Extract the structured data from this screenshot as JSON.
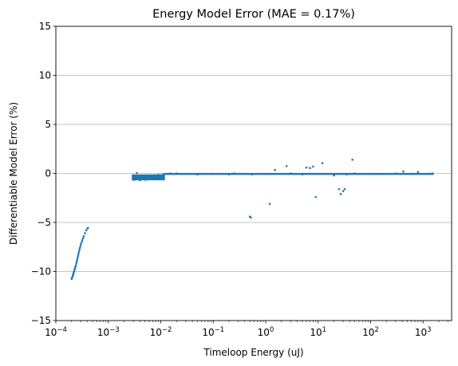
{
  "chart_data": {
    "type": "scatter",
    "title": "Energy Model Error (MAE = 0.17%)",
    "xlabel": "Timeloop Energy (uJ)",
    "ylabel": "Differentiable Model Error (%)",
    "x_scale": "log",
    "xlim": [
      0.0001,
      3500
    ],
    "ylim": [
      -15,
      15
    ],
    "x_ticks": [
      {
        "value": 0.0001,
        "base": "10",
        "exp": "−4"
      },
      {
        "value": 0.001,
        "base": "10",
        "exp": "−3"
      },
      {
        "value": 0.01,
        "base": "10",
        "exp": "−2"
      },
      {
        "value": 0.1,
        "base": "10",
        "exp": "−1"
      },
      {
        "value": 1,
        "base": "10",
        "exp": "0"
      },
      {
        "value": 10,
        "base": "10",
        "exp": "1"
      },
      {
        "value": 100,
        "base": "10",
        "exp": "2"
      },
      {
        "value": 1000,
        "base": "10",
        "exp": "3"
      }
    ],
    "y_ticks": [
      {
        "value": -15,
        "label": "−15"
      },
      {
        "value": -10,
        "label": "−10"
      },
      {
        "value": -5,
        "label": "−5"
      },
      {
        "value": 0,
        "label": "0"
      },
      {
        "value": 5,
        "label": "5"
      },
      {
        "value": 10,
        "label": "10"
      },
      {
        "value": 15,
        "label": "15"
      }
    ],
    "grid": "y-major",
    "point_color": "#1f77b4",
    "series": [
      {
        "points": [
          [
            0.0002,
            -10.75
          ],
          [
            0.000205,
            -10.6
          ],
          [
            0.00021,
            -10.45
          ],
          [
            0.000213,
            -10.3
          ],
          [
            0.000218,
            -10.15
          ],
          [
            0.000222,
            -10.0
          ],
          [
            0.000226,
            -9.85
          ],
          [
            0.00023,
            -9.7
          ],
          [
            0.000235,
            -9.55
          ],
          [
            0.00024,
            -9.4
          ],
          [
            0.000245,
            -9.2
          ],
          [
            0.00025,
            -9.0
          ],
          [
            0.000255,
            -8.8
          ],
          [
            0.00026,
            -8.6
          ],
          [
            0.000265,
            -8.4
          ],
          [
            0.00027,
            -8.2
          ],
          [
            0.000275,
            -8.0
          ],
          [
            0.00028,
            -7.8
          ],
          [
            0.000287,
            -7.6
          ],
          [
            0.000295,
            -7.4
          ],
          [
            0.0003,
            -7.2
          ],
          [
            0.00031,
            -7.0
          ],
          [
            0.00032,
            -6.8
          ],
          [
            0.00033,
            -6.6
          ],
          [
            0.00034,
            -6.4
          ],
          [
            0.00036,
            -6.1
          ],
          [
            0.00038,
            -5.8
          ],
          [
            0.0004,
            -5.6
          ],
          [
            0.00041,
            -5.55
          ],
          [
            0.003,
            -0.45
          ],
          [
            0.0031,
            -0.65
          ],
          [
            0.0032,
            -0.55
          ],
          [
            0.0033,
            -0.4
          ],
          [
            0.0034,
            -0.6
          ],
          [
            0.0035,
            0.05
          ],
          [
            0.0036,
            -0.5
          ],
          [
            0.0038,
            -0.55
          ],
          [
            0.004,
            -0.7
          ],
          [
            0.0042,
            -0.45
          ],
          [
            0.0045,
            -0.6
          ],
          [
            0.0048,
            -0.35
          ],
          [
            0.005,
            -0.5
          ],
          [
            0.0052,
            -0.65
          ],
          [
            0.0055,
            -0.3
          ],
          [
            0.006,
            -0.4
          ],
          [
            0.0065,
            -0.25
          ],
          [
            0.007,
            -0.35
          ],
          [
            0.0075,
            -0.2
          ],
          [
            0.008,
            -0.3
          ],
          [
            0.009,
            -0.15
          ],
          [
            0.01,
            -0.2
          ],
          [
            0.011,
            -0.1
          ],
          [
            0.012,
            -0.05
          ],
          [
            0.015,
            0.0
          ],
          [
            0.02,
            0.0
          ],
          [
            0.05,
            -0.1
          ],
          [
            0.1,
            -0.05
          ],
          [
            0.2,
            -0.1
          ],
          [
            0.25,
            0.0
          ],
          [
            0.5,
            -4.4
          ],
          [
            0.52,
            -4.5
          ],
          [
            0.55,
            -0.1
          ],
          [
            1.0,
            -0.05
          ],
          [
            1.2,
            -3.1
          ],
          [
            1.5,
            0.35
          ],
          [
            2.5,
            0.75
          ],
          [
            3.0,
            0.0
          ],
          [
            5.0,
            -0.1
          ],
          [
            6.0,
            0.6
          ],
          [
            7.0,
            0.55
          ],
          [
            8.0,
            0.7
          ],
          [
            9.0,
            -2.4
          ],
          [
            12.0,
            1.05
          ],
          [
            20.0,
            -0.2
          ],
          [
            25.0,
            -1.6
          ],
          [
            27.0,
            -2.1
          ],
          [
            30.0,
            -1.8
          ],
          [
            32.0,
            -1.6
          ],
          [
            35.0,
            -0.1
          ],
          [
            45.0,
            1.4
          ],
          [
            50.0,
            0.0
          ],
          [
            100.0,
            -0.05
          ],
          [
            300.0,
            0.0
          ],
          [
            420.0,
            0.2
          ],
          [
            600.0,
            -0.05
          ],
          [
            800.0,
            0.15
          ],
          [
            1500.0,
            0.0
          ]
        ],
        "bands": [
          {
            "x_from": 0.0028,
            "x_to": 0.012,
            "y_from": -0.7,
            "y_to": -0.1
          },
          {
            "x_from": 0.012,
            "x_to": 1600,
            "y_from": -0.15,
            "y_to": 0.05
          }
        ]
      }
    ]
  }
}
